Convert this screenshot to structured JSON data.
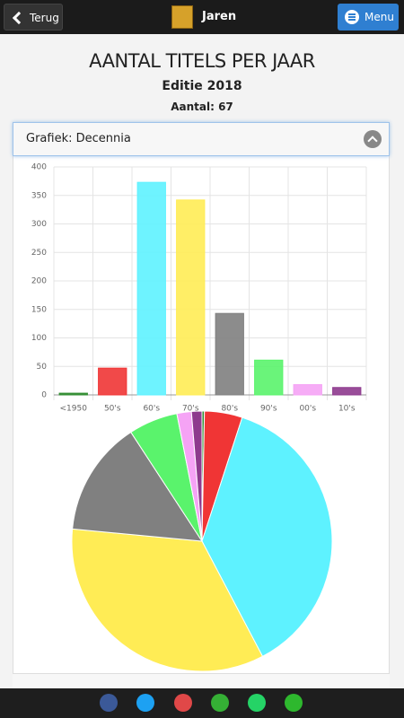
{
  "header": {
    "back": "Terug",
    "title": "Jaren",
    "menu": "Menu"
  },
  "page": {
    "title": "AANTAL TITELS PER JAAR",
    "edition": "Editie 2018",
    "count": "Aantal: 67"
  },
  "panel": {
    "title": "Grafiek: Decennia"
  },
  "chart_data": [
    {
      "type": "bar",
      "categories": [
        "<1950",
        "50's",
        "60's",
        "70's",
        "80's",
        "90's",
        "00's",
        "10's"
      ],
      "values": [
        3,
        47,
        373,
        342,
        143,
        61,
        18,
        13
      ],
      "colors": [
        "#2e8b2e",
        "#f03535",
        "#5ef2ff",
        "#ffec55",
        "#808080",
        "#5af36c",
        "#f5a3f5",
        "#8e3a8e"
      ],
      "ylim": [
        0,
        400
      ],
      "yticks": [
        0,
        50,
        100,
        150,
        200,
        250,
        300,
        350,
        400
      ],
      "grid": true
    },
    {
      "type": "pie",
      "values": [
        3,
        47,
        373,
        342,
        143,
        61,
        18,
        13
      ],
      "colors": [
        "#2e8b2e",
        "#f03535",
        "#5ef2ff",
        "#ffec55",
        "#808080",
        "#5af36c",
        "#f5a3f5",
        "#8e3a8e"
      ]
    }
  ]
}
